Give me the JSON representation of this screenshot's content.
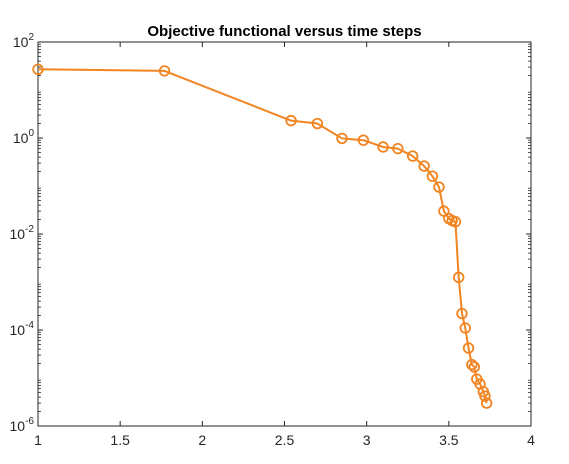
{
  "chart_data": {
    "type": "line",
    "title": "Objective functional versus time steps",
    "xlabel": "",
    "ylabel": "",
    "yscale": "log",
    "xlim": [
      1,
      4
    ],
    "ylim": [
      1e-06,
      100
    ],
    "grid": false,
    "x_ticks": [
      {
        "value": 1,
        "label": "1"
      },
      {
        "value": 1.5,
        "label": "1.5"
      },
      {
        "value": 2,
        "label": "2"
      },
      {
        "value": 2.5,
        "label": "2.5"
      },
      {
        "value": 3,
        "label": "3"
      },
      {
        "value": 3.5,
        "label": "3.5"
      },
      {
        "value": 4,
        "label": "4"
      }
    ],
    "y_ticks": [
      {
        "value": 1e-06,
        "base": "10",
        "exp": "-6"
      },
      {
        "value": 0.0001,
        "base": "10",
        "exp": "-4"
      },
      {
        "value": 0.01,
        "base": "10",
        "exp": "-2"
      },
      {
        "value": 1,
        "base": "10",
        "exp": "0"
      },
      {
        "value": 100,
        "base": "10",
        "exp": "2"
      }
    ],
    "series": [
      {
        "color": "#f28522",
        "marker": "circle",
        "x": [
          1.0,
          1.77,
          2.54,
          2.7,
          2.85,
          2.98,
          3.1,
          3.19,
          3.28,
          3.35,
          3.4,
          3.44,
          3.47,
          3.5,
          3.52,
          3.54,
          3.56,
          3.58,
          3.6,
          3.62,
          3.64,
          3.655,
          3.67,
          3.69,
          3.71,
          3.72,
          3.73
        ],
        "y": [
          27,
          25,
          2.3,
          2.0,
          0.98,
          0.9,
          0.65,
          0.6,
          0.42,
          0.26,
          0.16,
          0.095,
          0.03,
          0.021,
          0.019,
          0.018,
          0.00125,
          0.00022,
          0.00011,
          4.2e-05,
          1.9e-05,
          1.7e-05,
          9.5e-06,
          7.5e-06,
          5.2e-06,
          4.2e-06,
          3e-06
        ]
      }
    ]
  }
}
